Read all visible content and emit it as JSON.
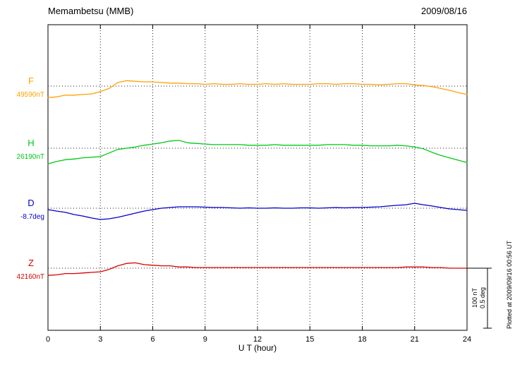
{
  "chart_data": {
    "type": "line",
    "title": "Memambetsu (MMB)",
    "date": "2009/08/16",
    "xlabel": "U T (hour)",
    "xlim": [
      0,
      24
    ],
    "x_ticks": [
      0,
      3,
      6,
      9,
      12,
      15,
      18,
      21,
      24
    ],
    "grid": "dotted vertical gridlines every 3 hours; dotted horizontal baseline per component",
    "plotted_at": "Plotted at 2009/09/16 00:56 UT",
    "scale_bar": {
      "nt_label": "100 nT",
      "deg_label": "0.5 deg"
    },
    "offset_note": "offsets are deviations from baseline_value in the series unit (nT or deg)",
    "x": [
      0,
      0.5,
      1,
      1.5,
      2,
      2.5,
      3,
      3.5,
      4,
      4.5,
      5,
      5.5,
      6,
      6.5,
      7,
      7.5,
      8,
      8.5,
      9,
      9.5,
      10,
      10.5,
      11,
      11.5,
      12,
      12.5,
      13,
      13.5,
      14,
      14.5,
      15,
      15.5,
      16,
      16.5,
      17,
      17.5,
      18,
      18.5,
      19,
      19.5,
      20,
      20.5,
      21,
      21.5,
      22,
      22.5,
      23,
      23.5,
      24
    ],
    "series": [
      {
        "name": "F",
        "baseline_label": "49590nT",
        "baseline_value": 49590,
        "unit": "nT",
        "color": "#FFA000",
        "offsets": [
          -19,
          -18,
          -15,
          -15,
          -14,
          -13,
          -9,
          -4,
          6,
          9,
          8,
          7,
          7,
          6,
          5,
          5,
          4,
          4,
          3,
          4,
          3,
          3,
          4,
          3,
          3,
          4,
          3,
          4,
          3,
          3,
          3,
          4,
          4,
          3,
          4,
          4,
          3,
          3,
          2,
          3,
          4,
          4,
          2,
          1,
          -1,
          -4,
          -7,
          -11,
          -14
        ]
      },
      {
        "name": "H",
        "baseline_label": "26190nT",
        "baseline_value": 26190,
        "unit": "nT",
        "color": "#00C818",
        "offsets": [
          -26,
          -22,
          -19,
          -18,
          -16,
          -15,
          -14,
          -8,
          -2,
          0,
          2,
          5,
          7,
          9,
          12,
          13,
          9,
          8,
          7,
          6,
          6,
          6,
          6,
          5,
          5,
          5,
          6,
          5,
          5,
          5,
          5,
          5,
          6,
          6,
          6,
          5,
          5,
          4,
          4,
          4,
          5,
          4,
          2,
          -1,
          -7,
          -12,
          -16,
          -20,
          -24
        ]
      },
      {
        "name": "D",
        "baseline_label": "-8.7deg",
        "baseline_value": -8.7,
        "unit": "deg",
        "color": "#0000CC",
        "offsets": [
          -0.012,
          -0.024,
          -0.035,
          -0.053,
          -0.065,
          -0.082,
          -0.094,
          -0.088,
          -0.076,
          -0.059,
          -0.041,
          -0.024,
          -0.012,
          0,
          0.006,
          0.012,
          0.012,
          0.012,
          0.009,
          0.006,
          0.006,
          0.003,
          0,
          0.003,
          0,
          0,
          0.003,
          0,
          0,
          0.003,
          0.003,
          0,
          0.003,
          0.006,
          0.003,
          0.006,
          0.006,
          0.009,
          0.012,
          0.018,
          0.024,
          0.029,
          0.041,
          0.029,
          0.018,
          0.006,
          -0.006,
          -0.012,
          -0.018
        ]
      },
      {
        "name": "Z",
        "baseline_label": "42160nT",
        "baseline_value": 42160,
        "unit": "nT",
        "color": "#D80000",
        "offsets": [
          -12,
          -11,
          -9,
          -9,
          -8,
          -7,
          -6,
          -2,
          4,
          8,
          9,
          6,
          5,
          4,
          4,
          2,
          2,
          1,
          1,
          1,
          1,
          1,
          1,
          1,
          1,
          1,
          1,
          1,
          1,
          1,
          1,
          1,
          1,
          1,
          1,
          1,
          1,
          1,
          1,
          1,
          1,
          2,
          2,
          2,
          1,
          1,
          0,
          0,
          0
        ]
      }
    ]
  }
}
